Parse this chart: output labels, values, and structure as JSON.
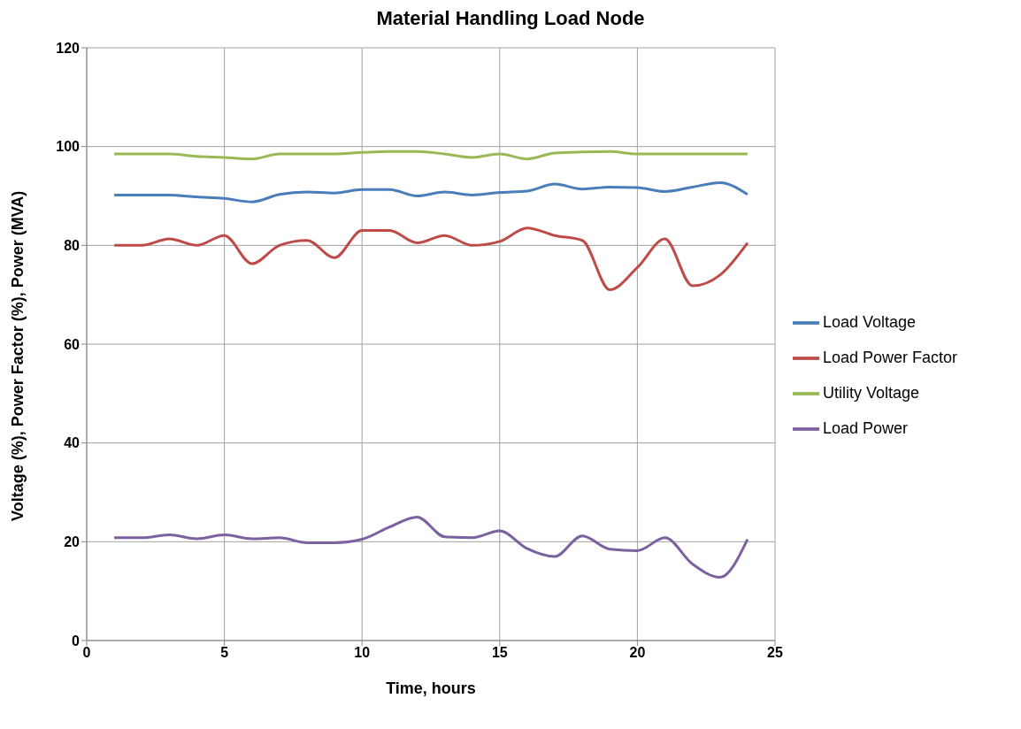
{
  "chart_data": {
    "type": "line",
    "title": "Material Handling Load Node",
    "xlabel": "Time, hours",
    "ylabel": "Voltage (%), Power Factor (%), Power (MVA)",
    "x": [
      1,
      2,
      3,
      4,
      5,
      6,
      7,
      8,
      9,
      10,
      11,
      12,
      13,
      14,
      15,
      16,
      17,
      18,
      19,
      20,
      21,
      22,
      23,
      24
    ],
    "series": [
      {
        "name": "Load Voltage",
        "color": "#4a7ebb",
        "values": [
          90.2,
          90.2,
          90.2,
          89.8,
          89.5,
          88.8,
          90.3,
          90.8,
          90.6,
          91.3,
          91.3,
          90,
          90.8,
          90.2,
          90.7,
          91,
          92.4,
          91.4,
          91.8,
          91.7,
          90.9,
          91.8,
          92.7,
          90.3
        ]
      },
      {
        "name": "Load Power Factor",
        "color": "#be4b48",
        "values": [
          80,
          80,
          81.3,
          80,
          82,
          76.3,
          80,
          81,
          77.5,
          83,
          83,
          80.5,
          82,
          80,
          80.8,
          83.5,
          82,
          81,
          71,
          75.5,
          81.3,
          71.8,
          74,
          80.5
        ]
      },
      {
        "name": "Utility Voltage",
        "color": "#98b954",
        "values": [
          98.5,
          98.5,
          98.5,
          98,
          97.8,
          97.5,
          98.5,
          98.5,
          98.5,
          98.8,
          99,
          99,
          98.5,
          97.8,
          98.5,
          97.5,
          98.7,
          98.9,
          99,
          98.5,
          98.5,
          98.5,
          98.5,
          98.5
        ]
      },
      {
        "name": "Load Power",
        "color": "#7d60a0",
        "values": [
          20.8,
          20.8,
          21.4,
          20.6,
          21.4,
          20.6,
          20.8,
          19.8,
          19.8,
          20.5,
          23,
          25,
          21,
          20.8,
          22.2,
          18.6,
          17,
          21.2,
          18.5,
          18.2,
          20.8,
          15.5,
          12.8,
          20.5
        ]
      }
    ],
    "xlim": [
      0,
      25
    ],
    "xticks": [
      0,
      5,
      10,
      15,
      20,
      25
    ],
    "ylim": [
      0,
      120
    ],
    "yticks": [
      0,
      20,
      40,
      60,
      80,
      100,
      120
    ],
    "grid": true,
    "legend": "right",
    "marker": "none",
    "line_style": "solid"
  }
}
